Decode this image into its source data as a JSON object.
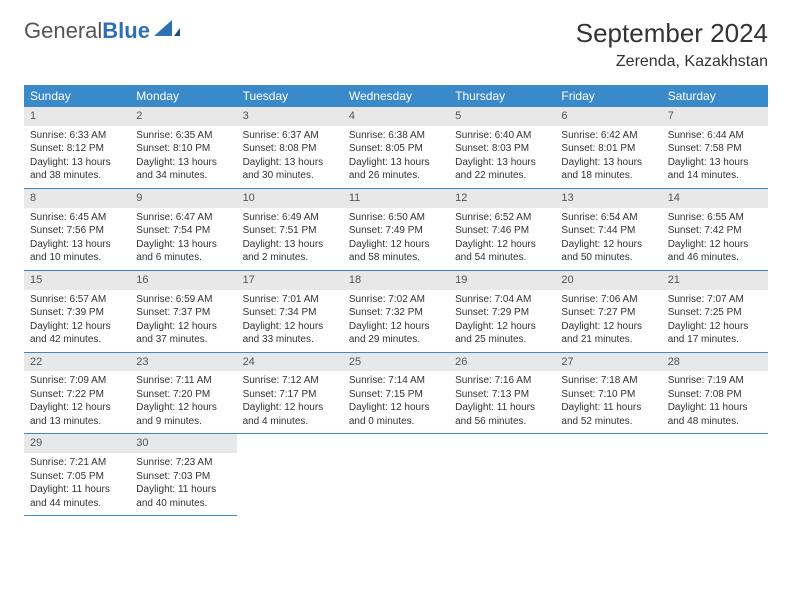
{
  "brand": {
    "part1": "General",
    "part2": "Blue"
  },
  "title": "September 2024",
  "location": "Zerenda, Kazakhstan",
  "styling": {
    "header_bg": "#3a8ac9",
    "header_text": "#ffffff",
    "daynum_bg": "#e8e8e8",
    "row_border": "#3a8ac9",
    "page_bg": "#ffffff",
    "text_color": "#333333",
    "title_fontsize": 26,
    "location_fontsize": 16,
    "dayhead_fontsize": 12,
    "cell_fontsize": 10
  },
  "daynames": [
    "Sunday",
    "Monday",
    "Tuesday",
    "Wednesday",
    "Thursday",
    "Friday",
    "Saturday"
  ],
  "weeks": [
    [
      {
        "num": "1",
        "sunrise": "6:33 AM",
        "sunset": "8:12 PM",
        "dl_h": "13",
        "dl_m": "38"
      },
      {
        "num": "2",
        "sunrise": "6:35 AM",
        "sunset": "8:10 PM",
        "dl_h": "13",
        "dl_m": "34"
      },
      {
        "num": "3",
        "sunrise": "6:37 AM",
        "sunset": "8:08 PM",
        "dl_h": "13",
        "dl_m": "30"
      },
      {
        "num": "4",
        "sunrise": "6:38 AM",
        "sunset": "8:05 PM",
        "dl_h": "13",
        "dl_m": "26"
      },
      {
        "num": "5",
        "sunrise": "6:40 AM",
        "sunset": "8:03 PM",
        "dl_h": "13",
        "dl_m": "22"
      },
      {
        "num": "6",
        "sunrise": "6:42 AM",
        "sunset": "8:01 PM",
        "dl_h": "13",
        "dl_m": "18"
      },
      {
        "num": "7",
        "sunrise": "6:44 AM",
        "sunset": "7:58 PM",
        "dl_h": "13",
        "dl_m": "14"
      }
    ],
    [
      {
        "num": "8",
        "sunrise": "6:45 AM",
        "sunset": "7:56 PM",
        "dl_h": "13",
        "dl_m": "10"
      },
      {
        "num": "9",
        "sunrise": "6:47 AM",
        "sunset": "7:54 PM",
        "dl_h": "13",
        "dl_m": "6"
      },
      {
        "num": "10",
        "sunrise": "6:49 AM",
        "sunset": "7:51 PM",
        "dl_h": "13",
        "dl_m": "2"
      },
      {
        "num": "11",
        "sunrise": "6:50 AM",
        "sunset": "7:49 PM",
        "dl_h": "12",
        "dl_m": "58"
      },
      {
        "num": "12",
        "sunrise": "6:52 AM",
        "sunset": "7:46 PM",
        "dl_h": "12",
        "dl_m": "54"
      },
      {
        "num": "13",
        "sunrise": "6:54 AM",
        "sunset": "7:44 PM",
        "dl_h": "12",
        "dl_m": "50"
      },
      {
        "num": "14",
        "sunrise": "6:55 AM",
        "sunset": "7:42 PM",
        "dl_h": "12",
        "dl_m": "46"
      }
    ],
    [
      {
        "num": "15",
        "sunrise": "6:57 AM",
        "sunset": "7:39 PM",
        "dl_h": "12",
        "dl_m": "42"
      },
      {
        "num": "16",
        "sunrise": "6:59 AM",
        "sunset": "7:37 PM",
        "dl_h": "12",
        "dl_m": "37"
      },
      {
        "num": "17",
        "sunrise": "7:01 AM",
        "sunset": "7:34 PM",
        "dl_h": "12",
        "dl_m": "33"
      },
      {
        "num": "18",
        "sunrise": "7:02 AM",
        "sunset": "7:32 PM",
        "dl_h": "12",
        "dl_m": "29"
      },
      {
        "num": "19",
        "sunrise": "7:04 AM",
        "sunset": "7:29 PM",
        "dl_h": "12",
        "dl_m": "25"
      },
      {
        "num": "20",
        "sunrise": "7:06 AM",
        "sunset": "7:27 PM",
        "dl_h": "12",
        "dl_m": "21"
      },
      {
        "num": "21",
        "sunrise": "7:07 AM",
        "sunset": "7:25 PM",
        "dl_h": "12",
        "dl_m": "17"
      }
    ],
    [
      {
        "num": "22",
        "sunrise": "7:09 AM",
        "sunset": "7:22 PM",
        "dl_h": "12",
        "dl_m": "13"
      },
      {
        "num": "23",
        "sunrise": "7:11 AM",
        "sunset": "7:20 PM",
        "dl_h": "12",
        "dl_m": "9"
      },
      {
        "num": "24",
        "sunrise": "7:12 AM",
        "sunset": "7:17 PM",
        "dl_h": "12",
        "dl_m": "4"
      },
      {
        "num": "25",
        "sunrise": "7:14 AM",
        "sunset": "7:15 PM",
        "dl_h": "12",
        "dl_m": "0"
      },
      {
        "num": "26",
        "sunrise": "7:16 AM",
        "sunset": "7:13 PM",
        "dl_h": "11",
        "dl_m": "56"
      },
      {
        "num": "27",
        "sunrise": "7:18 AM",
        "sunset": "7:10 PM",
        "dl_h": "11",
        "dl_m": "52"
      },
      {
        "num": "28",
        "sunrise": "7:19 AM",
        "sunset": "7:08 PM",
        "dl_h": "11",
        "dl_m": "48"
      }
    ],
    [
      {
        "num": "29",
        "sunrise": "7:21 AM",
        "sunset": "7:05 PM",
        "dl_h": "11",
        "dl_m": "44"
      },
      {
        "num": "30",
        "sunrise": "7:23 AM",
        "sunset": "7:03 PM",
        "dl_h": "11",
        "dl_m": "40"
      },
      null,
      null,
      null,
      null,
      null
    ]
  ]
}
